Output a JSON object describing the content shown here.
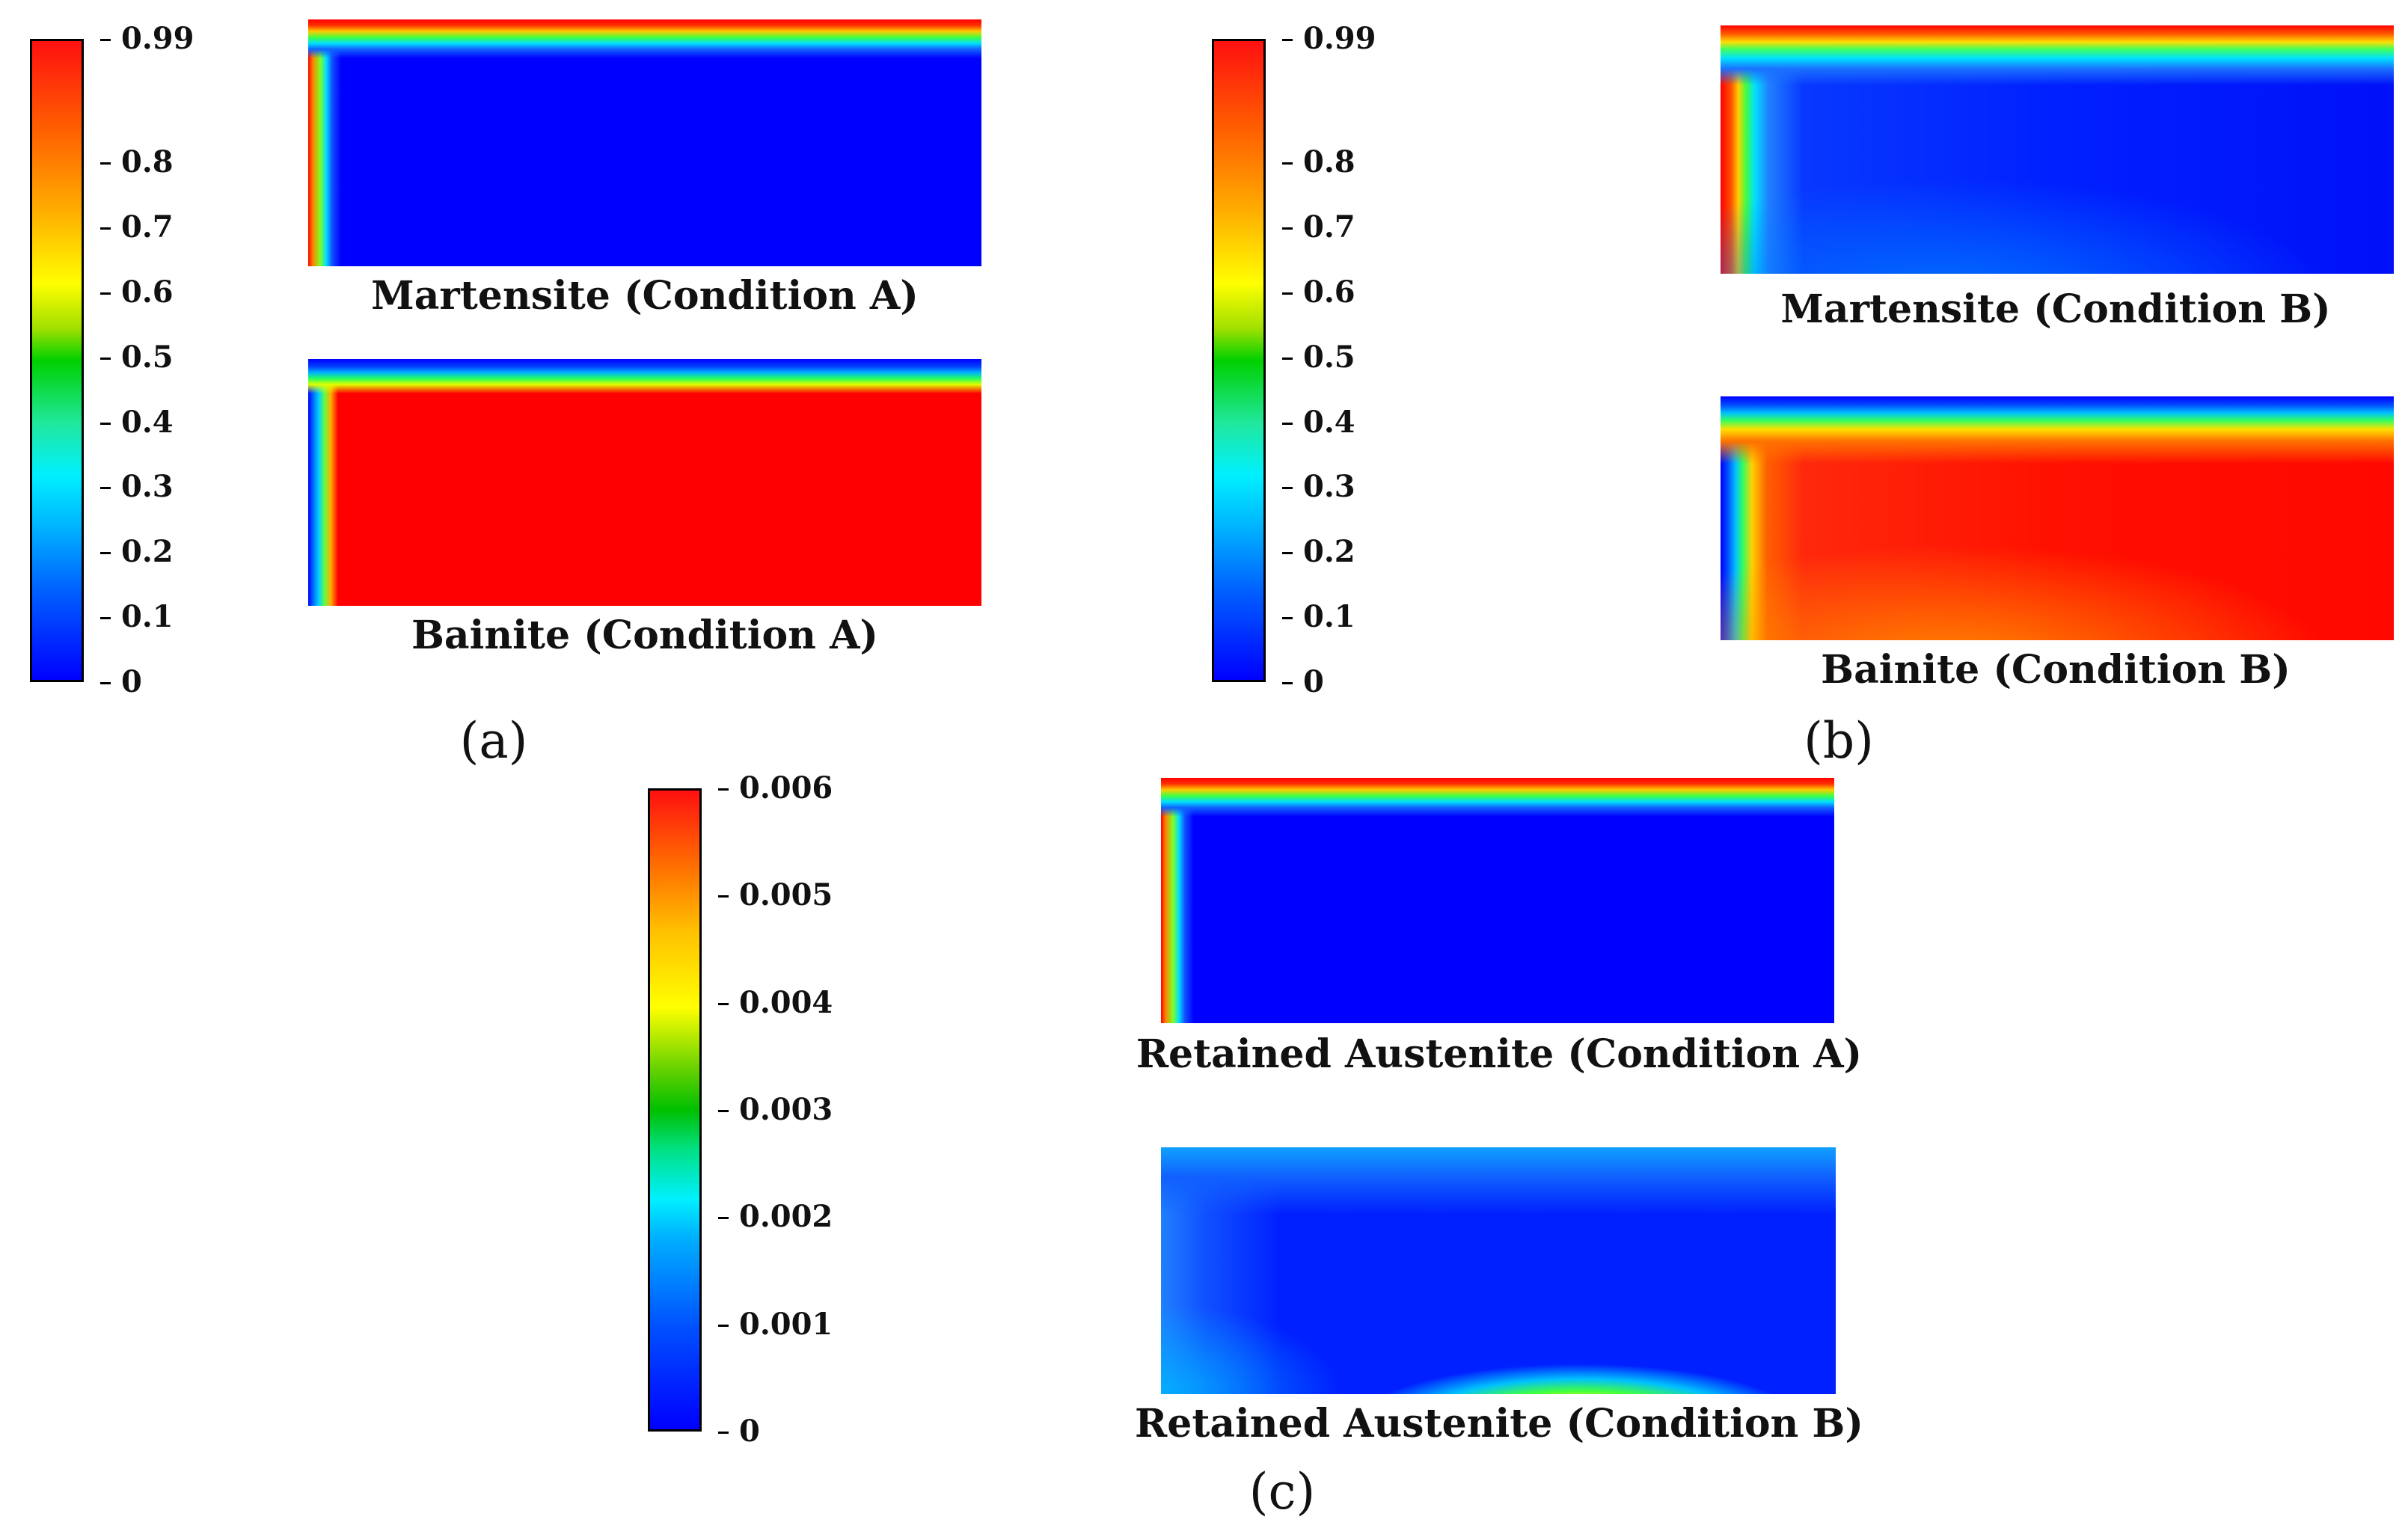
{
  "colorbar_main": {
    "ticks": [
      {
        "label": "0.99",
        "value": 0.99
      },
      {
        "label": "0.8",
        "value": 0.8
      },
      {
        "label": "0.7",
        "value": 0.7
      },
      {
        "label": "0.6",
        "value": 0.6
      },
      {
        "label": "0.5",
        "value": 0.5
      },
      {
        "label": "0.4",
        "value": 0.4
      },
      {
        "label": "0.3",
        "value": 0.3
      },
      {
        "label": "0.2",
        "value": 0.2
      },
      {
        "label": "0.1",
        "value": 0.1
      },
      {
        "label": "0",
        "value": 0
      }
    ],
    "min": 0,
    "max": 0.99
  },
  "colorbar_ra": {
    "ticks": [
      {
        "label": "0.006",
        "value": 0.006
      },
      {
        "label": "0.005",
        "value": 0.005
      },
      {
        "label": "0.004",
        "value": 0.004
      },
      {
        "label": "0.003",
        "value": 0.003
      },
      {
        "label": "0.002",
        "value": 0.002
      },
      {
        "label": "0.001",
        "value": 0.001
      },
      {
        "label": "0",
        "value": 0
      }
    ],
    "min": 0,
    "max": 0.006
  },
  "panels": {
    "a": {
      "sublabel": "(a)",
      "top": "Martensite (Condition A)",
      "bottom": "Bainite (Condition A)"
    },
    "b": {
      "sublabel": "(b)",
      "top": "Martensite (Condition B)",
      "bottom": "Bainite (Condition B)"
    },
    "c": {
      "sublabel": "(c)",
      "top": "Retained Austenite (Condition A)",
      "bottom": "Retained Austenite (Condition B)"
    }
  }
}
